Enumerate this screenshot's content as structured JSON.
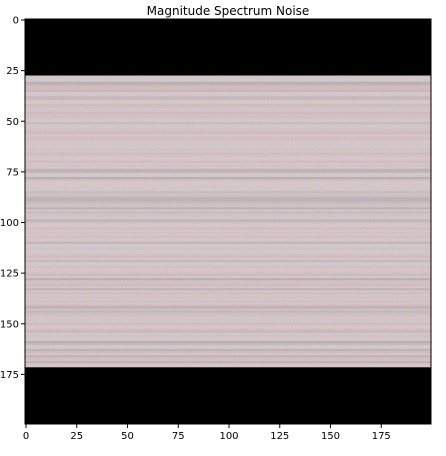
{
  "chart_data": {
    "type": "heatmap",
    "title": "Magnitude Spectrum Noise",
    "xlabel": "",
    "ylabel": "",
    "image_size": [
      200,
      200
    ],
    "xlim": [
      -0.5,
      199.5
    ],
    "ylim": [
      199.5,
      -0.5
    ],
    "x_ticks": [
      0,
      25,
      50,
      75,
      100,
      125,
      150,
      175
    ],
    "y_ticks": [
      0,
      25,
      50,
      75,
      100,
      125,
      150,
      175
    ],
    "x_tick_labels": [
      "0",
      "25",
      "50",
      "75",
      "100",
      "125",
      "150",
      "175"
    ],
    "y_tick_labels": [
      "0",
      "25",
      "50",
      "75",
      "100",
      "125",
      "150",
      "175"
    ],
    "grid": false,
    "regions": [
      {
        "name": "black-band-top",
        "rows": [
          0,
          27
        ],
        "color": "#000000"
      },
      {
        "name": "noise-band",
        "rows": [
          28,
          171
        ],
        "color": "#b0a2a5"
      },
      {
        "name": "black-band-bottom",
        "rows": [
          172,
          199
        ],
        "color": "#000000"
      }
    ],
    "colors": {
      "background": "#000000",
      "noise_base": "#b0a2a5",
      "noise_light": "#c7b7ba",
      "noise_dark": "#8f8d92",
      "noise_pink": "#d4a7ad"
    }
  }
}
